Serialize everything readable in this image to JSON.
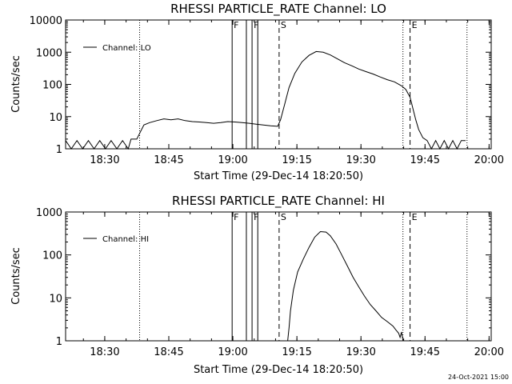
{
  "chart_data": [
    {
      "type": "line",
      "title": "RHESSI PARTICLE_RATE Channel: LO",
      "xlabel": "Start Time (29-Dec-14 18:20:50)",
      "ylabel": "Counts/sec",
      "yscale": "log",
      "ylim": [
        1,
        10000
      ],
      "xlim": [
        "18:20:50",
        "20:00:30"
      ],
      "xticks": [
        "18:30",
        "18:45",
        "19:00",
        "19:15",
        "19:30",
        "19:45",
        "20:00"
      ],
      "yticks": [
        "1",
        "10",
        "100",
        "1000",
        "10000"
      ],
      "legend": "upper-left",
      "grid": false,
      "markers": [
        {
          "label": "F",
          "time": "18:59:50",
          "style": "solid"
        },
        {
          "label": "",
          "time": "19:03:10",
          "style": "solid"
        },
        {
          "label": "F",
          "time": "19:04:30",
          "style": "solid"
        },
        {
          "label": "",
          "time": "19:05:50",
          "style": "solid"
        },
        {
          "label": "S",
          "time": "19:10:50",
          "style": "dashed"
        },
        {
          "label": "E",
          "time": "19:41:30",
          "style": "dashed"
        },
        {
          "label": "",
          "time": "18:38:10",
          "style": "dotted"
        },
        {
          "label": "",
          "time": "19:39:50",
          "style": "dotted"
        },
        {
          "label": "",
          "time": "19:54:50",
          "style": "dotted"
        }
      ],
      "series": [
        {
          "name": "Channel: LO",
          "x": [
            "18:20:50",
            "18:22:10",
            "18:23:30",
            "18:24:50",
            "18:26:10",
            "18:27:30",
            "18:28:50",
            "18:30:10",
            "18:31:30",
            "18:32:50",
            "18:34:10",
            "18:35:30",
            "18:36:10",
            "18:37:30",
            "18:38:10",
            "18:39:10",
            "18:40:30",
            "18:42:10",
            "18:43:50",
            "18:45:30",
            "18:47:10",
            "18:48:50",
            "18:50:30",
            "18:52:10",
            "18:53:50",
            "18:55:30",
            "18:57:10",
            "18:58:50",
            "19:00:30",
            "19:02:10",
            "19:03:50",
            "19:05:30",
            "19:07:10",
            "19:08:50",
            "19:10:30",
            "19:11:10",
            "19:12:10",
            "19:13:10",
            "19:14:30",
            "19:16:10",
            "19:17:50",
            "19:19:30",
            "19:21:10",
            "19:22:50",
            "19:24:30",
            "19:26:10",
            "19:27:50",
            "19:29:30",
            "19:31:10",
            "19:32:50",
            "19:34:30",
            "19:36:10",
            "19:37:50",
            "19:39:30",
            "19:40:30",
            "19:41:30",
            "19:42:10",
            "19:42:50",
            "19:43:30",
            "19:44:30",
            "19:45:30",
            "19:46:30",
            "19:47:30",
            "19:48:30",
            "19:49:30",
            "19:50:30",
            "19:51:30",
            "19:52:30",
            "19:53:30",
            "19:54:30"
          ],
          "values": [
            1.8,
            1,
            1.8,
            1,
            1.8,
            1,
            1.8,
            1,
            1.8,
            1,
            1.8,
            1,
            2,
            2,
            3,
            5.5,
            6.5,
            7.5,
            8.5,
            8,
            8.5,
            7.5,
            7,
            6.8,
            6.5,
            6.2,
            6.5,
            7,
            6.8,
            6.5,
            6.2,
            5.8,
            5.5,
            5.2,
            5,
            8,
            25,
            80,
            220,
            500,
            800,
            1050,
            1000,
            820,
            620,
            470,
            380,
            300,
            250,
            210,
            170,
            140,
            120,
            90,
            70,
            40,
            18,
            8,
            4,
            2.2,
            1.8,
            1,
            1.8,
            1,
            1.8,
            1,
            1.8,
            1,
            1.8,
            1.8
          ]
        }
      ]
    },
    {
      "type": "line",
      "title": "RHESSI PARTICLE_RATE Channel: HI",
      "xlabel": "Start Time (29-Dec-14 18:20:50)",
      "ylabel": "Counts/sec",
      "yscale": "log",
      "ylim": [
        1,
        1000
      ],
      "xlim": [
        "18:20:50",
        "20:00:30"
      ],
      "xticks": [
        "18:30",
        "18:45",
        "19:00",
        "19:15",
        "19:30",
        "19:45",
        "20:00"
      ],
      "yticks": [
        "1",
        "10",
        "100",
        "1000"
      ],
      "legend": "upper-left",
      "grid": false,
      "markers": [
        {
          "label": "F",
          "time": "18:59:50",
          "style": "solid"
        },
        {
          "label": "",
          "time": "19:03:10",
          "style": "solid"
        },
        {
          "label": "F",
          "time": "19:04:30",
          "style": "solid"
        },
        {
          "label": "",
          "time": "19:05:50",
          "style": "solid"
        },
        {
          "label": "S",
          "time": "19:10:50",
          "style": "dashed"
        },
        {
          "label": "E",
          "time": "19:41:30",
          "style": "dashed"
        },
        {
          "label": "",
          "time": "18:38:10",
          "style": "dotted"
        },
        {
          "label": "",
          "time": "19:39:50",
          "style": "dotted"
        },
        {
          "label": "",
          "time": "19:54:50",
          "style": "dotted"
        }
      ],
      "series": [
        {
          "name": "Channel: HI",
          "x": [
            "19:12:50",
            "19:13:10",
            "19:13:30",
            "19:14:10",
            "19:15:10",
            "19:16:30",
            "19:17:50",
            "19:19:10",
            "19:20:30",
            "19:21:50",
            "19:22:50",
            "19:24:10",
            "19:25:30",
            "19:26:50",
            "19:28:10",
            "19:29:30",
            "19:30:50",
            "19:32:10",
            "19:33:30",
            "19:34:50",
            "19:36:10",
            "19:37:30",
            "19:38:10",
            "19:38:50",
            "19:39:10",
            "19:39:30",
            "19:39:50"
          ],
          "values": [
            1,
            2,
            5,
            15,
            40,
            80,
            150,
            260,
            350,
            340,
            280,
            180,
            100,
            55,
            30,
            18,
            11,
            7,
            5,
            3.5,
            2.8,
            2.2,
            1.8,
            1.5,
            1.2,
            1.6,
            1
          ]
        }
      ]
    }
  ],
  "footer": {
    "timestamp": "24-Oct-2021 15:00"
  }
}
